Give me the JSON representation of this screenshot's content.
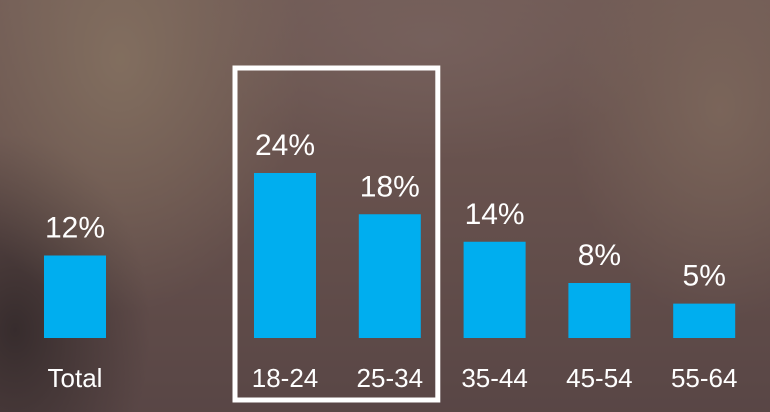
{
  "chart_data": {
    "type": "bar",
    "categories": [
      "Total",
      "18-24",
      "25-34",
      "35-44",
      "45-54",
      "55-64"
    ],
    "values": [
      12,
      24,
      18,
      14,
      8,
      5
    ],
    "value_labels": [
      "12%",
      "24%",
      "18%",
      "14%",
      "8%",
      "5%"
    ],
    "bar_color": "#00aeef",
    "highlighted_categories": [
      "18-24",
      "25-34"
    ],
    "highlight_color": "#ffffff",
    "ylim": [
      0,
      24
    ],
    "grid": false,
    "legend": "none"
  }
}
